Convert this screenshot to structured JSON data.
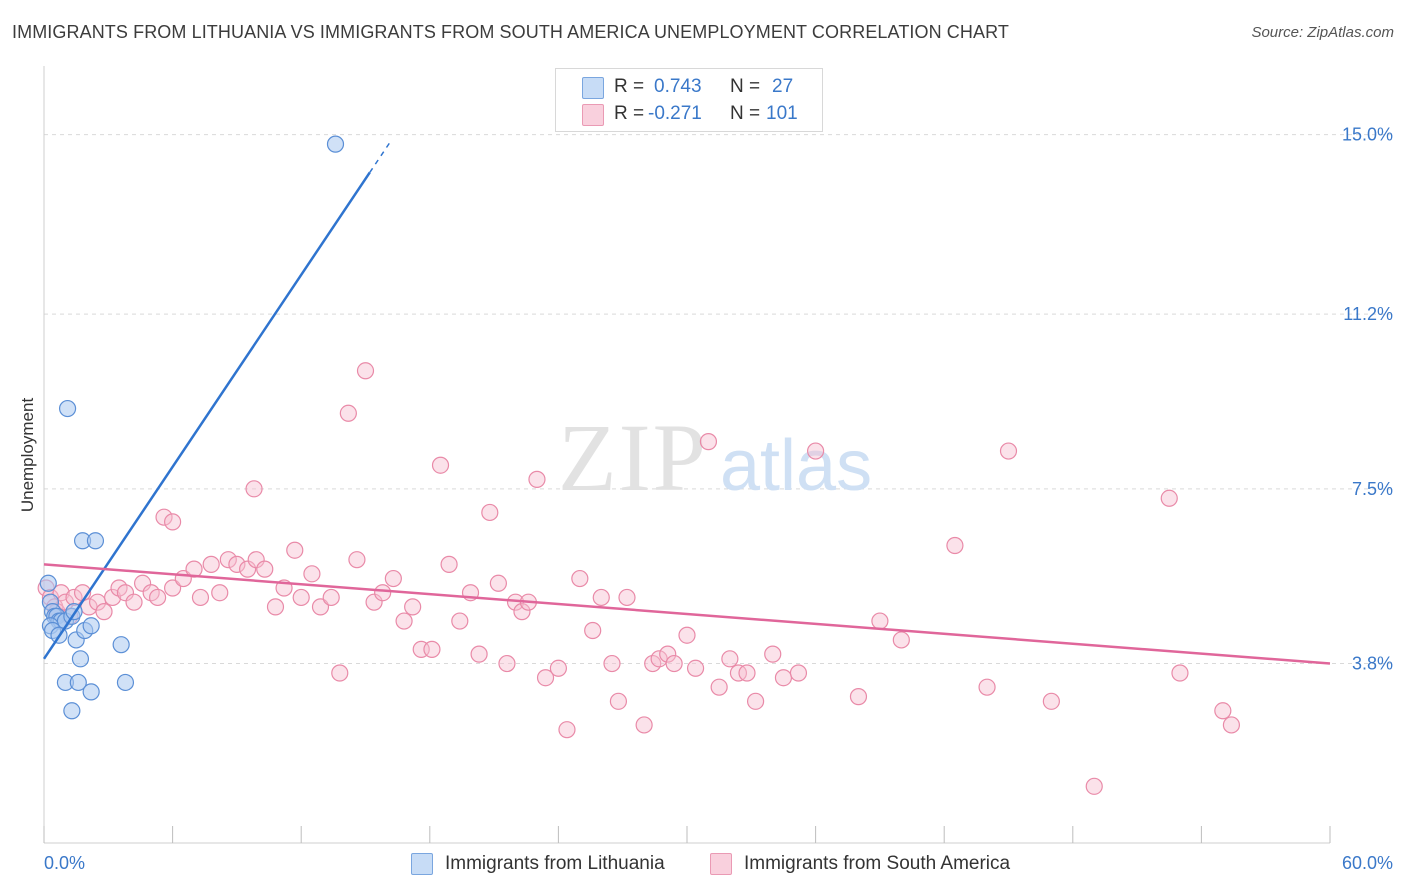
{
  "title": "IMMIGRANTS FROM LITHUANIA VS IMMIGRANTS FROM SOUTH AMERICA UNEMPLOYMENT CORRELATION CHART",
  "source": "Source: ZipAtlas.com",
  "watermark": {
    "zip": "ZIP",
    "atlas": "atlas"
  },
  "legend_top": [
    {
      "r_label": "R =",
      "r_value": "0.743",
      "n_label": "N =",
      "n_value": "27"
    },
    {
      "r_label": "R =",
      "r_value": "-0.271",
      "n_label": "N =",
      "n_value": "101"
    }
  ],
  "legend_bottom": [
    "Immigrants from Lithuania",
    "Immigrants from South America"
  ],
  "colors": {
    "blue_fill": "#a9c8f0",
    "blue_stroke": "#5b8fd6",
    "blue_line": "#2f74cf",
    "pink_fill": "#f6bfd0",
    "pink_stroke": "#e98aa8",
    "pink_line": "#e0669a",
    "tick_label": "#3a78c9",
    "grid": "#d9d9d9"
  },
  "chart_data": {
    "type": "scatter",
    "xlabel": "",
    "ylabel": "Unemployment",
    "xlim": [
      0,
      60
    ],
    "ylim": [
      0,
      16.2
    ],
    "x_tick_labels": [
      "0.0%",
      "60.0%"
    ],
    "y_ticks": [
      3.8,
      7.5,
      11.2,
      15.0
    ],
    "y_tick_labels": [
      "3.8%",
      "7.5%",
      "11.2%",
      "15.0%"
    ],
    "grid": true,
    "legend_position": "top-center",
    "series": [
      {
        "name": "Immigrants from Lithuania",
        "R": 0.743,
        "N": 27,
        "trend": {
          "x0": 0,
          "y0": 3.9,
          "x1": 15.2,
          "y1": 14.2,
          "dash_to_x": 16.2
        },
        "points": [
          [
            13.6,
            14.8
          ],
          [
            1.1,
            9.2
          ],
          [
            1.8,
            6.4
          ],
          [
            2.4,
            6.4
          ],
          [
            0.2,
            5.5
          ],
          [
            0.3,
            5.1
          ],
          [
            0.4,
            4.9
          ],
          [
            0.5,
            4.8
          ],
          [
            0.6,
            4.8
          ],
          [
            0.7,
            4.7
          ],
          [
            0.8,
            4.7
          ],
          [
            1.0,
            4.7
          ],
          [
            1.3,
            4.8
          ],
          [
            0.3,
            4.6
          ],
          [
            0.4,
            4.5
          ],
          [
            0.7,
            4.4
          ],
          [
            1.5,
            4.3
          ],
          [
            1.9,
            4.5
          ],
          [
            2.2,
            4.6
          ],
          [
            1.4,
            4.9
          ],
          [
            1.7,
            3.9
          ],
          [
            3.6,
            4.2
          ],
          [
            1.0,
            3.4
          ],
          [
            1.6,
            3.4
          ],
          [
            3.8,
            3.4
          ],
          [
            2.2,
            3.2
          ],
          [
            1.3,
            2.8
          ]
        ]
      },
      {
        "name": "Immigrants from South America",
        "R": -0.271,
        "N": 101,
        "trend": {
          "x0": 0,
          "y0": 5.9,
          "x1": 60,
          "y1": 3.8
        },
        "points": [
          [
            0.1,
            5.4
          ],
          [
            0.3,
            5.2
          ],
          [
            0.5,
            5.0
          ],
          [
            0.6,
            4.9
          ],
          [
            0.8,
            5.3
          ],
          [
            1.0,
            5.1
          ],
          [
            1.2,
            4.8
          ],
          [
            1.4,
            5.2
          ],
          [
            1.8,
            5.3
          ],
          [
            2.1,
            5.0
          ],
          [
            2.5,
            5.1
          ],
          [
            2.8,
            4.9
          ],
          [
            3.2,
            5.2
          ],
          [
            3.5,
            5.4
          ],
          [
            3.8,
            5.3
          ],
          [
            4.2,
            5.1
          ],
          [
            4.6,
            5.5
          ],
          [
            5.0,
            5.3
          ],
          [
            5.3,
            5.2
          ],
          [
            5.6,
            6.9
          ],
          [
            6.0,
            6.8
          ],
          [
            6.0,
            5.4
          ],
          [
            6.5,
            5.6
          ],
          [
            7.0,
            5.8
          ],
          [
            7.3,
            5.2
          ],
          [
            7.8,
            5.9
          ],
          [
            8.2,
            5.3
          ],
          [
            8.6,
            6.0
          ],
          [
            9.0,
            5.9
          ],
          [
            9.5,
            5.8
          ],
          [
            9.9,
            6.0
          ],
          [
            10.3,
            5.8
          ],
          [
            10.8,
            5.0
          ],
          [
            11.2,
            5.4
          ],
          [
            11.7,
            6.2
          ],
          [
            12.0,
            5.2
          ],
          [
            12.5,
            5.7
          ],
          [
            12.9,
            5.0
          ],
          [
            13.4,
            5.2
          ],
          [
            13.8,
            3.6
          ],
          [
            14.2,
            9.1
          ],
          [
            14.6,
            6.0
          ],
          [
            15.0,
            10.0
          ],
          [
            15.4,
            5.1
          ],
          [
            15.8,
            5.3
          ],
          [
            16.3,
            5.6
          ],
          [
            16.8,
            4.7
          ],
          [
            17.2,
            5.0
          ],
          [
            17.6,
            4.1
          ],
          [
            18.1,
            4.1
          ],
          [
            18.5,
            8.0
          ],
          [
            18.9,
            5.9
          ],
          [
            19.4,
            4.7
          ],
          [
            19.9,
            5.3
          ],
          [
            20.3,
            4.0
          ],
          [
            20.8,
            7.0
          ],
          [
            21.2,
            5.5
          ],
          [
            21.6,
            3.8
          ],
          [
            22.0,
            5.1
          ],
          [
            22.3,
            4.9
          ],
          [
            22.6,
            5.1
          ],
          [
            23.0,
            7.7
          ],
          [
            23.4,
            3.5
          ],
          [
            24.0,
            3.7
          ],
          [
            24.4,
            2.4
          ],
          [
            25.0,
            5.6
          ],
          [
            25.6,
            4.5
          ],
          [
            26.0,
            5.2
          ],
          [
            26.5,
            3.8
          ],
          [
            26.8,
            3.0
          ],
          [
            27.2,
            5.2
          ],
          [
            28.0,
            2.5
          ],
          [
            28.4,
            3.8
          ],
          [
            28.7,
            3.9
          ],
          [
            29.1,
            4.0
          ],
          [
            29.4,
            3.8
          ],
          [
            30.0,
            4.4
          ],
          [
            30.4,
            3.7
          ],
          [
            31.0,
            8.5
          ],
          [
            31.5,
            3.3
          ],
          [
            32.0,
            3.9
          ],
          [
            32.4,
            3.6
          ],
          [
            32.8,
            3.6
          ],
          [
            33.2,
            3.0
          ],
          [
            34.0,
            4.0
          ],
          [
            34.5,
            3.5
          ],
          [
            36.0,
            8.3
          ],
          [
            38.0,
            3.1
          ],
          [
            40.0,
            4.3
          ],
          [
            42.5,
            6.3
          ],
          [
            45.0,
            8.3
          ],
          [
            47.0,
            3.0
          ],
          [
            49.0,
            1.2
          ],
          [
            52.5,
            7.3
          ],
          [
            53.0,
            3.6
          ],
          [
            55.0,
            2.8
          ],
          [
            55.4,
            2.5
          ],
          [
            35.2,
            3.6
          ],
          [
            39.0,
            4.7
          ],
          [
            44.0,
            3.3
          ],
          [
            9.8,
            7.5
          ]
        ]
      }
    ]
  }
}
